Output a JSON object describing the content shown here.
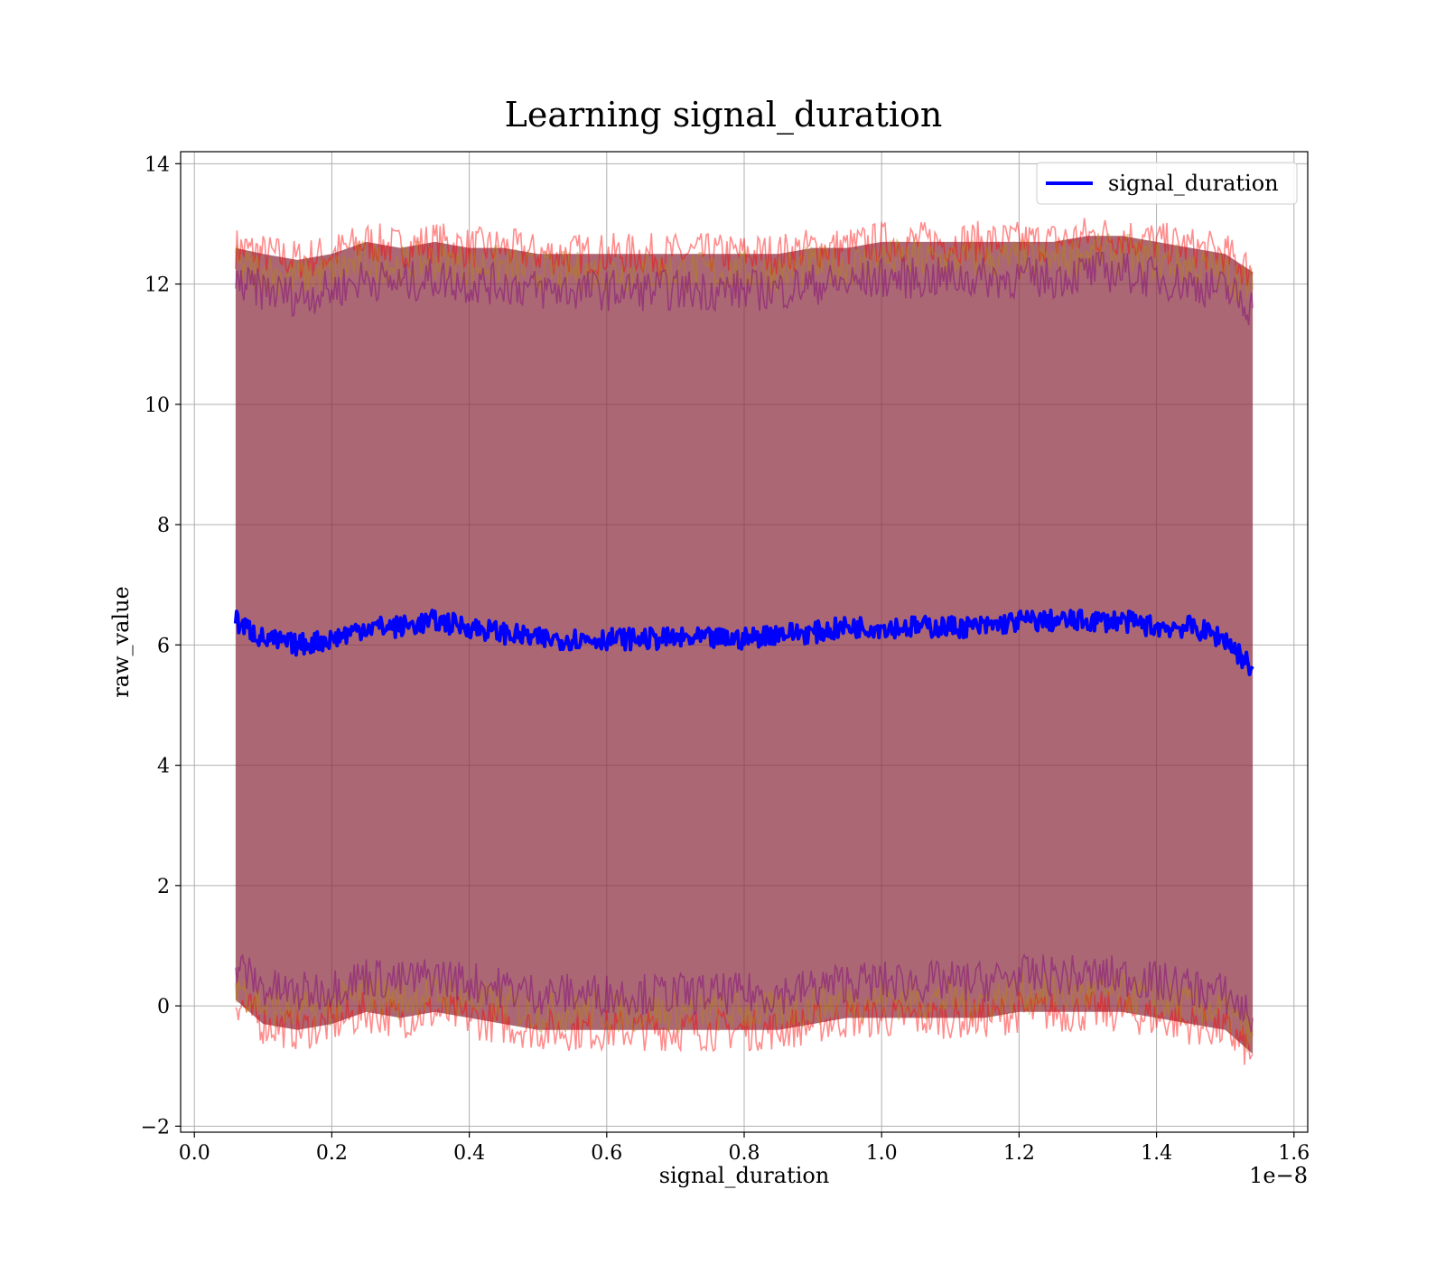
{
  "chart_data": {
    "type": "line",
    "title": "Learning signal_duration",
    "xlabel": "signal_duration",
    "ylabel": "raw_value",
    "x_offset_label": "1e−8",
    "x_scale": 1e-08,
    "xlim": [
      -0.02,
      1.62
    ],
    "ylim": [
      -2.1,
      14.2
    ],
    "x_ticks": [
      0.0,
      0.2,
      0.4,
      0.6,
      0.8,
      1.0,
      1.2,
      1.4,
      1.6
    ],
    "x_tick_labels": [
      "0.0",
      "0.2",
      "0.4",
      "0.6",
      "0.8",
      "1.0",
      "1.2",
      "1.4",
      "1.6"
    ],
    "y_ticks": [
      -2,
      0,
      2,
      4,
      6,
      8,
      10,
      12,
      14
    ],
    "y_tick_labels": [
      "−2",
      "0",
      "2",
      "4",
      "6",
      "8",
      "10",
      "12",
      "14"
    ],
    "grid": true,
    "legend": {
      "position": "top-right",
      "entries": [
        "signal_duration"
      ]
    },
    "colors": {
      "line": "#0000ff",
      "band_outer": "#ff0000",
      "band_middle": "#b8860b",
      "band_inner": "#800080",
      "band_fill": "#8b2e3e"
    },
    "series": [
      {
        "name": "signal_duration",
        "x": [
          0.06,
          0.1,
          0.15,
          0.2,
          0.25,
          0.3,
          0.35,
          0.4,
          0.45,
          0.5,
          0.55,
          0.6,
          0.65,
          0.7,
          0.75,
          0.8,
          0.85,
          0.9,
          0.95,
          1.0,
          1.05,
          1.1,
          1.15,
          1.2,
          1.25,
          1.3,
          1.35,
          1.4,
          1.45,
          1.5,
          1.54
        ],
        "y": [
          6.4,
          6.1,
          6.0,
          6.1,
          6.3,
          6.3,
          6.4,
          6.3,
          6.2,
          6.1,
          6.1,
          6.1,
          6.1,
          6.1,
          6.1,
          6.1,
          6.2,
          6.2,
          6.3,
          6.3,
          6.3,
          6.3,
          6.3,
          6.4,
          6.4,
          6.4,
          6.4,
          6.3,
          6.3,
          6.1,
          5.6
        ]
      }
    ],
    "bands": [
      {
        "name": "outer",
        "upper": [
          12.6,
          12.5,
          12.4,
          12.5,
          12.7,
          12.6,
          12.7,
          12.6,
          12.6,
          12.5,
          12.5,
          12.5,
          12.5,
          12.5,
          12.5,
          12.5,
          12.5,
          12.6,
          12.6,
          12.7,
          12.7,
          12.7,
          12.7,
          12.7,
          12.7,
          12.8,
          12.8,
          12.7,
          12.6,
          12.5,
          12.2
        ],
        "lower": [
          0.1,
          -0.3,
          -0.4,
          -0.3,
          -0.1,
          -0.2,
          -0.1,
          -0.2,
          -0.3,
          -0.4,
          -0.4,
          -0.4,
          -0.4,
          -0.4,
          -0.4,
          -0.4,
          -0.4,
          -0.3,
          -0.2,
          -0.2,
          -0.2,
          -0.2,
          -0.2,
          -0.1,
          -0.1,
          -0.1,
          -0.1,
          -0.2,
          -0.3,
          -0.4,
          -0.8
        ]
      },
      {
        "name": "middle",
        "upper": [
          12.3,
          12.2,
          12.1,
          12.2,
          12.4,
          12.3,
          12.4,
          12.3,
          12.3,
          12.2,
          12.2,
          12.2,
          12.2,
          12.2,
          12.2,
          12.2,
          12.2,
          12.3,
          12.3,
          12.4,
          12.4,
          12.4,
          12.4,
          12.4,
          12.4,
          12.5,
          12.5,
          12.4,
          12.3,
          12.2,
          11.9
        ],
        "lower": [
          0.4,
          0.0,
          -0.1,
          0.0,
          0.2,
          0.1,
          0.2,
          0.1,
          0.0,
          -0.1,
          -0.1,
          -0.1,
          -0.1,
          -0.1,
          -0.1,
          -0.1,
          -0.1,
          0.0,
          0.1,
          0.1,
          0.1,
          0.1,
          0.1,
          0.2,
          0.2,
          0.2,
          0.2,
          0.1,
          0.0,
          -0.1,
          -0.5
        ]
      },
      {
        "name": "inner",
        "upper": [
          12.0,
          11.9,
          11.8,
          11.9,
          12.1,
          12.0,
          12.1,
          12.0,
          12.0,
          11.9,
          11.9,
          11.9,
          11.9,
          11.9,
          11.9,
          11.9,
          11.9,
          12.0,
          12.0,
          12.1,
          12.1,
          12.1,
          12.1,
          12.1,
          12.1,
          12.2,
          12.2,
          12.1,
          12.0,
          11.9,
          11.6
        ],
        "lower": [
          0.7,
          0.3,
          0.2,
          0.3,
          0.5,
          0.4,
          0.5,
          0.4,
          0.3,
          0.2,
          0.2,
          0.2,
          0.2,
          0.2,
          0.2,
          0.2,
          0.2,
          0.3,
          0.4,
          0.4,
          0.4,
          0.4,
          0.4,
          0.5,
          0.5,
          0.5,
          0.5,
          0.4,
          0.3,
          0.2,
          -0.2
        ]
      }
    ]
  }
}
